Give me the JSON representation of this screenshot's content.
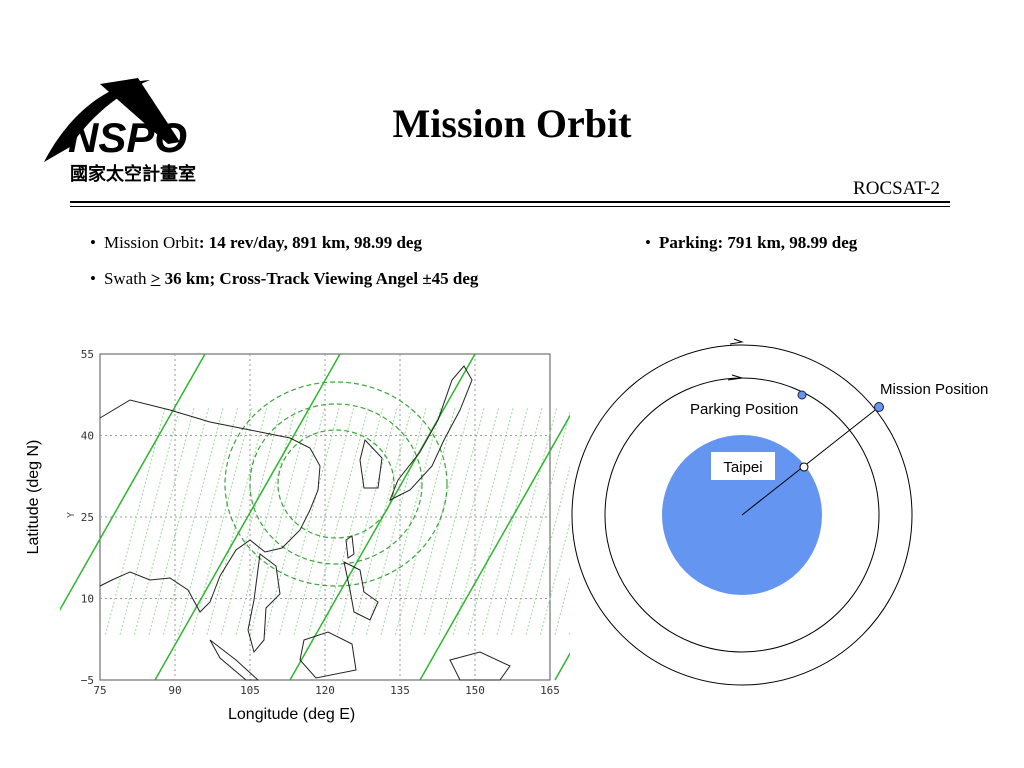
{
  "header": {
    "title": "Mission Orbit",
    "subtitle": "ROCSAT-2",
    "logo_text": "NSPO",
    "logo_chinese": "國家太空計畫室"
  },
  "bullets": {
    "mission_orbit_label": "Mission Orbit",
    "mission_orbit_value": ": 14 rev/day, 891 km, 98.99 deg",
    "swath_label": "Swath",
    "swath_ge": ">",
    "swath_value": " 36 km; Cross-Track Viewing Angel ±45 deg",
    "parking": "Parking: 791 km, 98.99 deg"
  },
  "map": {
    "xlabel": "Longitude (deg E)",
    "ylabel": "Latitude (deg N)",
    "inner_axis_label": "Y",
    "x_ticks": [
      "75",
      "90",
      "105",
      "120",
      "135",
      "150",
      "165"
    ],
    "y_ticks": [
      "55",
      "40",
      "25",
      "10",
      "−5"
    ],
    "xlim": [
      75,
      165
    ],
    "ylim": [
      -5,
      55
    ]
  },
  "orbit_diagram": {
    "mission_position_label": "Mission Position",
    "parking_position_label": "Parking Position",
    "taipei_label": "Taipei",
    "earth_color": "#6495f0"
  }
}
